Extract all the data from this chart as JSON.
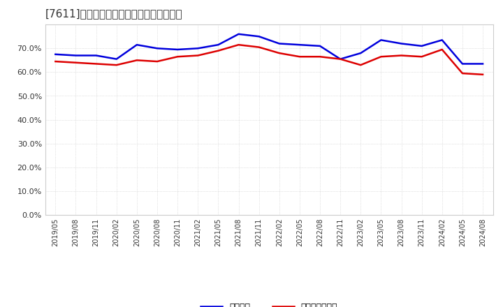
{
  "title": "[7611]　固定比率、固定長期適合率の推移",
  "x_labels": [
    "2019/05",
    "2019/08",
    "2019/11",
    "2020/02",
    "2020/05",
    "2020/08",
    "2020/11",
    "2021/02",
    "2021/05",
    "2021/08",
    "2021/11",
    "2022/02",
    "2022/05",
    "2022/08",
    "2022/11",
    "2023/02",
    "2023/05",
    "2023/08",
    "2023/11",
    "2024/02",
    "2024/05",
    "2024/08"
  ],
  "blue_values": [
    67.5,
    67.0,
    67.0,
    65.5,
    71.5,
    70.0,
    69.5,
    70.0,
    71.5,
    76.0,
    75.0,
    72.0,
    71.5,
    71.0,
    65.5,
    68.0,
    73.5,
    72.0,
    71.0,
    73.5,
    63.5,
    63.5
  ],
  "red_values": [
    64.5,
    64.0,
    63.5,
    63.0,
    65.0,
    64.5,
    66.5,
    67.0,
    69.0,
    71.5,
    70.5,
    68.0,
    66.5,
    66.5,
    65.5,
    63.0,
    66.5,
    67.0,
    66.5,
    69.5,
    59.5,
    59.0
  ],
  "blue_color": "#0000dd",
  "red_color": "#dd0000",
  "ylim_min": 0.0,
  "ylim_max": 80.0,
  "yticks": [
    0.0,
    10.0,
    20.0,
    30.0,
    40.0,
    50.0,
    60.0,
    70.0
  ],
  "legend_blue": "固定比率",
  "legend_red": "固定長期適合率",
  "bg_color": "#ffffff",
  "grid_color": "#bbbbbb",
  "figsize": [
    7.2,
    4.4
  ],
  "dpi": 100
}
